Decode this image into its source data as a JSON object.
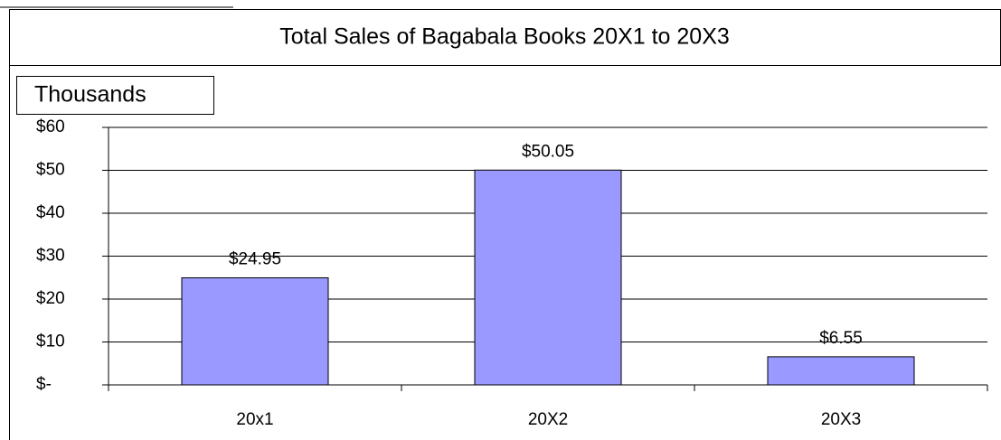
{
  "chart_data": {
    "type": "bar",
    "title": "Total Sales of Bagabala Books 20X1 to 20X3",
    "ylabel": "Thousands",
    "categories": [
      "20x1",
      "20X2",
      "20X3"
    ],
    "values": [
      24.95,
      50.05,
      6.55
    ],
    "value_labels": [
      "$24.95",
      "$50.05",
      "$6.55"
    ],
    "color": "#9999ff",
    "ylim": [
      0,
      60
    ],
    "yticks": [
      {
        "value": 0,
        "label": "$-"
      },
      {
        "value": 10,
        "label": "$10"
      },
      {
        "value": 20,
        "label": "$20"
      },
      {
        "value": 30,
        "label": "$30"
      },
      {
        "value": 40,
        "label": "$40"
      },
      {
        "value": 50,
        "label": "$50"
      },
      {
        "value": 60,
        "label": "$60"
      }
    ],
    "grid": true
  }
}
